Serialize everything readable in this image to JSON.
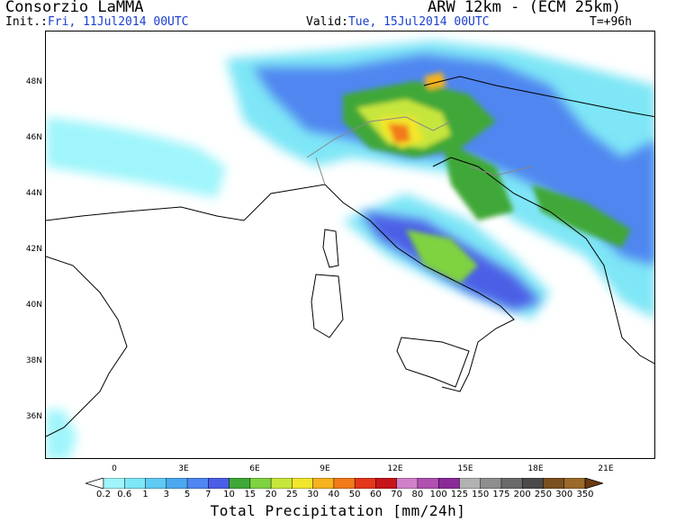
{
  "header": {
    "title_left": "Consorzio LaMMA",
    "title_right": "ARW 12km - (ECM 25km)",
    "init_label": "Init.:",
    "init_value": "Fri, 11Jul2014 00UTC",
    "valid_label": "Valid:",
    "valid_value": "Tue, 15Jul2014 00UTC",
    "forecast_step": "T=+96h"
  },
  "map": {
    "lat_labels": [
      "48N",
      "46N",
      "44N",
      "42N",
      "40N",
      "38N",
      "36N"
    ],
    "lon_labels": [
      "0",
      "3E",
      "6E",
      "9E",
      "12E",
      "15E",
      "18E",
      "21E"
    ]
  },
  "legend": {
    "title": "Total Precipitation [mm/24h]",
    "levels": [
      "0.2",
      "0.6",
      "1",
      "3",
      "5",
      "7",
      "10",
      "15",
      "20",
      "25",
      "30",
      "40",
      "50",
      "60",
      "70",
      "80",
      "100",
      "125",
      "150",
      "175",
      "200",
      "250",
      "300",
      "350"
    ],
    "colors": [
      "#9ff5fb",
      "#7ee6f6",
      "#5fcaf3",
      "#4aa8f0",
      "#4f86f0",
      "#4b5ee6",
      "#3fa838",
      "#7fd240",
      "#c7e63c",
      "#f2e62c",
      "#f6b21f",
      "#f27a1a",
      "#e4371b",
      "#c5151c",
      "#d080c8",
      "#b050b0",
      "#8a2a98",
      "#b2b2b2",
      "#8e8e8e",
      "#6a6a6a",
      "#4a4a4a",
      "#7a5020",
      "#9a6a2a",
      "#6a3a10"
    ]
  }
}
